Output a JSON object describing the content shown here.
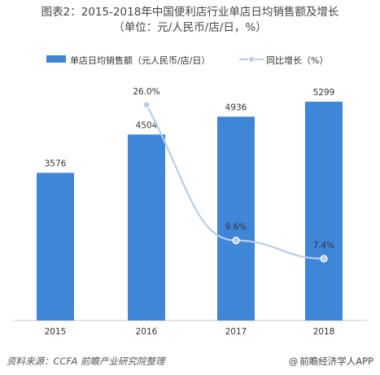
{
  "title_line1": "图表2：2015-2018年中国便利店行业单店日均销售额及增长",
  "title_line2": "（单位：元/人民币/店/日，%）",
  "footer": {
    "source": "资料来源：CCFA 前瞻产业研究院整理",
    "brand_at": "@",
    "brand": "前瞻经济学人APP"
  },
  "colors": {
    "bar": "#3f86d8",
    "line": "#b9cde8",
    "dot": "#b9cde8",
    "axis": "#cccccc"
  },
  "chart_data": {
    "type": "bar",
    "categories": [
      "2015",
      "2016",
      "2017",
      "2018"
    ],
    "series": [
      {
        "name": "单店日均销售额（元人民币/店/日）",
        "type": "bar",
        "values": [
          3576,
          4504,
          4936,
          5299
        ]
      },
      {
        "name": "同比增长（%）",
        "type": "line",
        "values": [
          null,
          26.0,
          9.6,
          7.4
        ]
      }
    ],
    "bar_labels": [
      "3576",
      "4504",
      "4936",
      "5299"
    ],
    "line_labels": [
      "",
      "26.0%",
      "9.6%",
      "7.4%"
    ]
  }
}
